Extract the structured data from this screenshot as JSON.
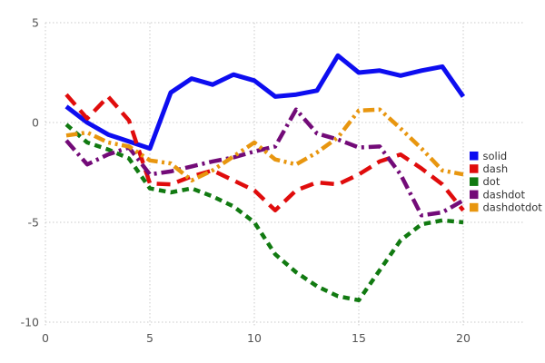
{
  "chart": {
    "background": "#ffffff",
    "grid_color": "#c9c9c9",
    "tick_label_color": "#545454",
    "legend_label_color": "#333333"
  },
  "chart_data": {
    "type": "line",
    "title": "",
    "xlabel": "",
    "ylabel": "",
    "xlim": [
      0,
      20
    ],
    "ylim": [
      -10,
      5
    ],
    "grid": true,
    "legend_position": "right",
    "x_ticks": [
      "0",
      "5",
      "10",
      "15",
      "20"
    ],
    "x_tick_values": [
      0,
      5,
      10,
      15,
      20
    ],
    "y_ticks": [
      "5",
      "0",
      "-5",
      "-10"
    ],
    "y_tick_values": [
      5,
      0,
      -5,
      -10
    ],
    "x": [
      1,
      2,
      3,
      4,
      5,
      6,
      7,
      8,
      9,
      10,
      11,
      12,
      13,
      14,
      15,
      16,
      17,
      18,
      19,
      20
    ],
    "series": [
      {
        "name": "solid",
        "color": "#0d0df0",
        "dash_style": "solid",
        "stroke_width": 5,
        "values": [
          0.8,
          0.0,
          -0.6,
          -0.95,
          -1.3,
          1.5,
          2.2,
          1.9,
          2.4,
          2.1,
          1.3,
          1.4,
          1.6,
          3.35,
          2.5,
          2.6,
          2.35,
          2.6,
          2.8,
          1.3
        ]
      },
      {
        "name": "dash",
        "color": "#e00c0c",
        "dash_style": "dash",
        "stroke_width": 4.5,
        "values": [
          1.4,
          0.2,
          1.3,
          0.1,
          -3.05,
          -3.1,
          -2.7,
          -2.4,
          -2.9,
          -3.4,
          -4.4,
          -3.4,
          -3.0,
          -3.1,
          -2.6,
          -1.95,
          -1.6,
          -2.3,
          -3.1,
          -4.4
        ]
      },
      {
        "name": "dot",
        "color": "#117a11",
        "dash_style": "dot",
        "stroke_width": 4.5,
        "values": [
          -0.1,
          -1.0,
          -1.35,
          -1.8,
          -3.3,
          -3.5,
          -3.3,
          -3.7,
          -4.2,
          -5.0,
          -6.6,
          -7.5,
          -8.2,
          -8.7,
          -8.9,
          -7.4,
          -5.9,
          -5.1,
          -4.9,
          -5.0
        ]
      },
      {
        "name": "dashdot",
        "color": "#730b78",
        "dash_style": "dashdot",
        "stroke_width": 4.5,
        "values": [
          -0.9,
          -2.1,
          -1.6,
          -1.25,
          -2.6,
          -2.45,
          -2.2,
          -1.95,
          -1.75,
          -1.45,
          -1.2,
          0.65,
          -0.55,
          -0.85,
          -1.25,
          -1.2,
          -2.6,
          -4.65,
          -4.5,
          -3.9
        ]
      },
      {
        "name": "dashdotdot",
        "color": "#e8960f",
        "dash_style": "dashdotdot",
        "stroke_width": 4.5,
        "values": [
          -0.65,
          -0.5,
          -1.0,
          -1.2,
          -1.9,
          -2.05,
          -2.9,
          -2.4,
          -1.7,
          -1.0,
          -1.85,
          -2.1,
          -1.5,
          -0.75,
          0.6,
          0.65,
          -0.3,
          -1.3,
          -2.4,
          -2.6
        ]
      }
    ],
    "legend": [
      {
        "label": "solid"
      },
      {
        "label": "dash"
      },
      {
        "label": "dot"
      },
      {
        "label": "dashdot"
      },
      {
        "label": "dashdotdot"
      }
    ]
  }
}
